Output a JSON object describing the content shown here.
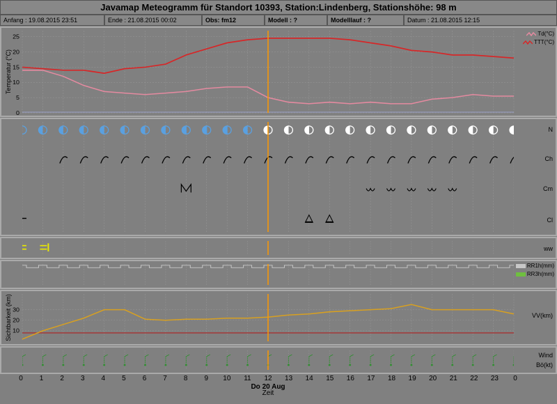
{
  "title": "Javamap Meteogramm für Standort 10393, Station:Lindenberg, Stationshöhe: 98 m",
  "info": {
    "anfang": "Anfang : 19.08.2015 23:51",
    "ende": "Ende : 21.08.2015 00:02",
    "obs": "Obs: fm12",
    "modell": "Modell : ?",
    "modelllauf": "Modelllauf : ?",
    "datum": "Datum : 21.08.2015 12:15"
  },
  "axis": {
    "x_hours": [
      0,
      1,
      2,
      3,
      4,
      5,
      6,
      7,
      8,
      9,
      10,
      11,
      12,
      13,
      14,
      15,
      16,
      17,
      18,
      19,
      20,
      21,
      22,
      23,
      0
    ],
    "x_center_label": "Do 20 Aug",
    "x_title": "Zeit",
    "now_hour": 12
  },
  "colors": {
    "bg": "#808080",
    "panel_border": "#aaaaaa",
    "grid": "#9a9a9a",
    "grid_dash": "2,2",
    "now_line": "#ff9900",
    "temp_TTT": "#d62728",
    "temp_Td": "#e58aa0",
    "temp_base": "#9aa0c8",
    "cloud_blue": "#5aa0e0",
    "cloud_white": "#ffffff",
    "ww_yellow": "#e8e800",
    "rr1h": "#c8c8c8",
    "rr3h": "#6fbf3f",
    "vv_line": "#d8a020",
    "vv_ref": "#b02020",
    "wind": "#2f8f2f",
    "text": "#000000"
  },
  "temperature": {
    "ylabel": "Temperatur (°C)",
    "ylim": [
      0,
      27
    ],
    "yticks": [
      0,
      5,
      10,
      15,
      20,
      25
    ],
    "legend": [
      {
        "label": "Td(°C)",
        "color": "#e58aa0"
      },
      {
        "label": "TTT(°C)",
        "color": "#d62728"
      }
    ],
    "series": {
      "TTT": [
        15,
        14.5,
        14,
        14,
        13,
        14.5,
        15,
        16,
        19,
        21,
        23,
        24,
        24.5,
        24.5,
        24.5,
        24.5,
        24,
        23,
        22,
        20.5,
        20,
        19,
        19,
        18.5,
        18
      ],
      "Td": [
        14,
        14,
        12,
        9,
        7,
        6.5,
        6,
        6.5,
        7,
        8,
        8.5,
        8.5,
        5,
        3.5,
        3,
        3.5,
        3,
        3.5,
        3,
        3,
        4.5,
        5,
        6,
        5.5,
        5.5
      ]
    }
  },
  "clouds": {
    "rows": [
      "N",
      "Ch",
      "Cm",
      "Cl"
    ],
    "N_fill": [
      0.45,
      0.45,
      0.45,
      0.45,
      0.45,
      0.45,
      0.5,
      0.5,
      0.55,
      0.55,
      0.55,
      0.5,
      0.5,
      0.5,
      0.5,
      0.5,
      0.45,
      0.45,
      0.5,
      0.5,
      0.5,
      0.5,
      0.5,
      0.5,
      0.5
    ],
    "N_blue_until": 12
  },
  "ww": {
    "label": "ww",
    "marks": [
      0,
      1
    ]
  },
  "precip": {
    "ylabel": "",
    "legend": [
      {
        "label": "RR1h(mm)",
        "color": "#c8c8c8"
      },
      {
        "label": "RR3h(mm)",
        "color": "#6fbf3f"
      }
    ]
  },
  "visibility": {
    "ylabel": "Sichtbarkeit (km)",
    "label_right": "VV(km)",
    "ylim": [
      0,
      45
    ],
    "yticks": [
      10,
      20,
      30
    ],
    "ref_value": 8,
    "values": [
      2,
      10,
      16,
      22,
      30,
      30,
      21,
      20,
      21,
      21,
      22,
      22,
      23,
      25,
      26,
      28,
      29,
      30,
      31,
      35,
      30,
      30,
      30,
      30,
      26
    ]
  },
  "wind": {
    "labels": [
      "Wind",
      "Bö(kt)"
    ],
    "values": [
      3,
      3,
      3,
      3,
      4,
      4,
      5,
      5,
      6,
      6,
      7,
      7,
      7,
      6,
      6,
      5,
      5,
      5,
      4,
      4,
      4,
      3,
      3,
      3,
      3
    ]
  }
}
